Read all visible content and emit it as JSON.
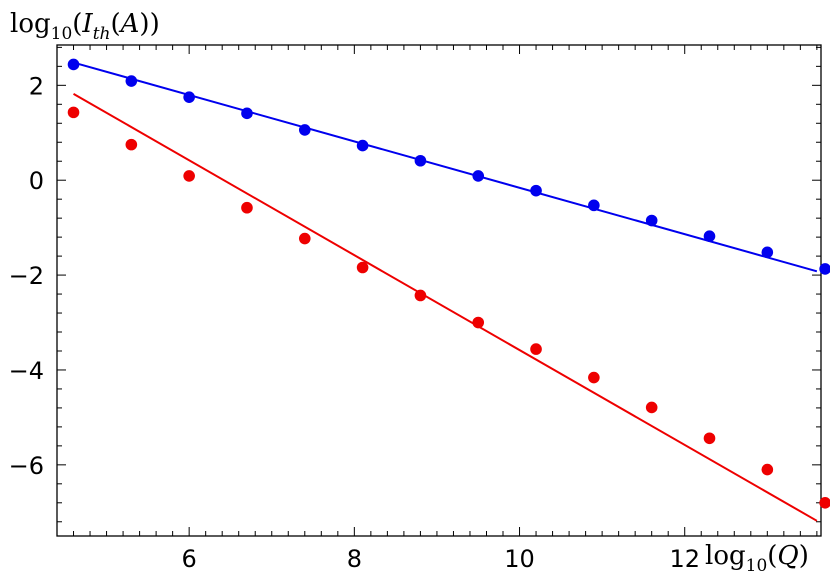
{
  "chart_data": {
    "type": "scatter",
    "ylabel": "log10(Ith(A))",
    "xlabel": "log10(Q)",
    "xlim": [
      4.4,
      13.65
    ],
    "ylim": [
      -7.5,
      2.85
    ],
    "x_ticks": [
      6,
      8,
      10,
      12
    ],
    "x_tick_labels": [
      "6",
      "8",
      "10",
      "12"
    ],
    "x_minor_step": 0.2,
    "y_ticks": [
      2,
      0,
      -2,
      -4,
      -6
    ],
    "y_tick_labels": [
      "2",
      "0",
      "−2",
      "−4",
      "−6"
    ],
    "y_minor_step": 0.4,
    "grid": false,
    "x": [
      4.6,
      5.3,
      6.0,
      6.7,
      7.4,
      8.1,
      8.8,
      9.5,
      10.2,
      10.9,
      11.6,
      12.3,
      13.0,
      13.7
    ],
    "series": [
      {
        "color": "#0000ee",
        "values": [
          2.44,
          2.09,
          1.75,
          1.41,
          1.06,
          0.73,
          0.41,
          0.09,
          -0.22,
          -0.53,
          -0.85,
          -1.18,
          -1.52,
          -1.87
        ],
        "fit_line": {
          "x": [
            4.6,
            13.6
          ],
          "y": [
            2.48,
            -1.92
          ]
        }
      },
      {
        "color": "#ee0000",
        "values": [
          1.43,
          0.75,
          0.09,
          -0.58,
          -1.23,
          -1.84,
          -2.43,
          -3.0,
          -3.56,
          -4.16,
          -4.79,
          -5.44,
          -6.1,
          -6.8
        ],
        "fit_line": {
          "x": [
            4.6,
            13.6
          ],
          "y": [
            1.82,
            -7.18
          ]
        }
      }
    ]
  }
}
